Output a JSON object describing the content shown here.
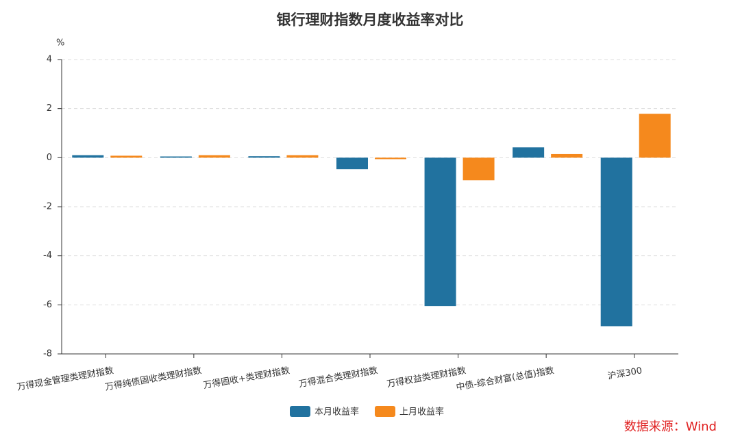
{
  "chart_data": {
    "type": "bar",
    "title": "银行理财指数月度收益率对比",
    "y_label": "%",
    "categories": [
      "万得现金管理类理财指数",
      "万得纯债固收类理财指数",
      "万得固收+类理财指数",
      "万得混合类理财指数",
      "万得权益类理财指数",
      "中债-综合财富(总值)指数",
      "沪深300"
    ],
    "series": [
      {
        "name": "本月收益率",
        "color": "#21729f",
        "values": [
          0.1,
          0.05,
          0.06,
          -0.47,
          -6.05,
          0.42,
          -6.87
        ]
      },
      {
        "name": "上月收益率",
        "color": "#f5891d",
        "values": [
          0.08,
          0.1,
          0.1,
          -0.06,
          -0.92,
          0.15,
          1.79
        ]
      }
    ],
    "ylim": [
      -8,
      4
    ],
    "yticks": [
      4,
      2,
      0,
      -2,
      -4,
      -6,
      -8
    ],
    "grid": true,
    "source": "数据来源：Wind"
  }
}
